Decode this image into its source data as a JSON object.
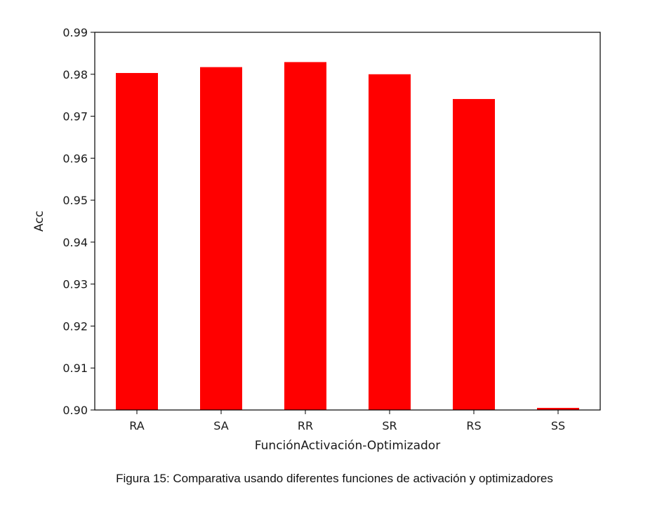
{
  "chart_data": {
    "type": "bar",
    "categories": [
      "RA",
      "SA",
      "RR",
      "SR",
      "RS",
      "SS"
    ],
    "values": [
      0.9803,
      0.9817,
      0.9829,
      0.98,
      0.9741,
      0.9005
    ],
    "ylim": [
      0.9,
      0.99
    ],
    "yticks": [
      "0.90",
      "0.91",
      "0.92",
      "0.93",
      "0.94",
      "0.95",
      "0.96",
      "0.97",
      "0.98",
      "0.99"
    ],
    "xlabel": "FunciónActivación-Optimizador",
    "ylabel": "Acc",
    "bar_color": "#ff0000",
    "grid": false,
    "legend": false
  },
  "caption": "Figura 15: Comparativa usando diferentes funciones de activación y optimizadores"
}
